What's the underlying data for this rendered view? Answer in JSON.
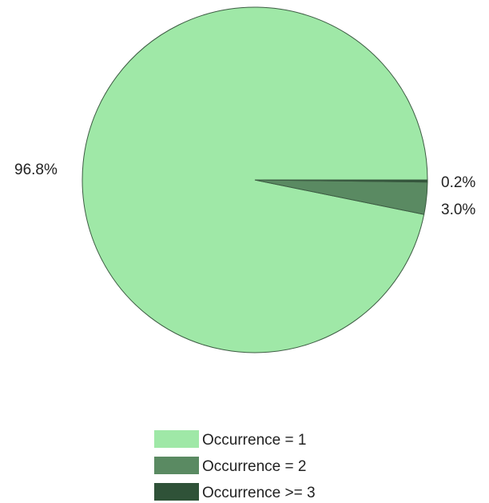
{
  "chart_data": {
    "type": "pie",
    "categories": [
      "Occurrence = 1",
      "Occurrence = 2",
      "Occurrence >= 3"
    ],
    "values": [
      96.8,
      3.0,
      0.2
    ],
    "value_labels": [
      "96.8%",
      "3.0%",
      "0.2%"
    ],
    "colors": [
      "#9fe8a7",
      "#5a8a62",
      "#2f5238"
    ],
    "legend_position": "bottom",
    "title": ""
  }
}
